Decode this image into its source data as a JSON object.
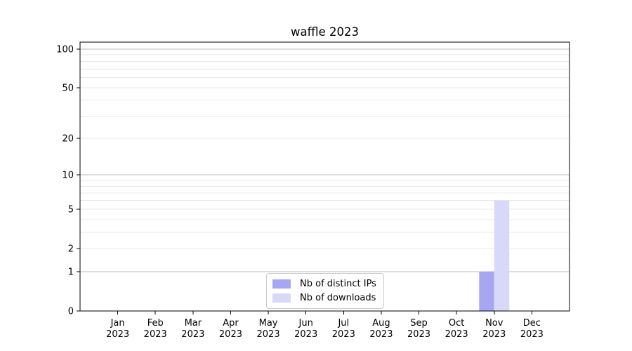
{
  "chart_data": {
    "type": "bar",
    "title": "waffle 2023",
    "x_tick_months": [
      "Jan",
      "Feb",
      "Mar",
      "Apr",
      "May",
      "Jun",
      "Jul",
      "Aug",
      "Sep",
      "Oct",
      "Nov",
      "Dec"
    ],
    "x_tick_year": "2023",
    "series": [
      {
        "name": "Nb of distinct IPs",
        "color": "#a6a6f2",
        "values": [
          0,
          0,
          0,
          0,
          0,
          0,
          0,
          0,
          0,
          0,
          1,
          0
        ]
      },
      {
        "name": "Nb of downloads",
        "color": "#d8d8f8",
        "values": [
          0,
          0,
          0,
          0,
          0,
          0,
          0,
          0,
          0,
          0,
          6,
          0
        ]
      }
    ],
    "yscale": "log1p",
    "ylim": [
      0,
      113
    ],
    "y_tick_values": [
      100,
      50,
      20,
      10,
      5,
      2,
      1,
      0
    ],
    "y_gridlines_major": [
      1,
      10,
      100
    ],
    "y_gridlines_minor": [
      2,
      3,
      4,
      5,
      6,
      7,
      8,
      9,
      20,
      30,
      40,
      50,
      60,
      70,
      80,
      90
    ],
    "legend_position": "lower center",
    "grid": true,
    "colors": {
      "grid_major": "#bdbdbd",
      "grid_minor": "#e8e8e8",
      "spine": "#000000",
      "text": "#000000",
      "background": "#ffffff"
    }
  }
}
